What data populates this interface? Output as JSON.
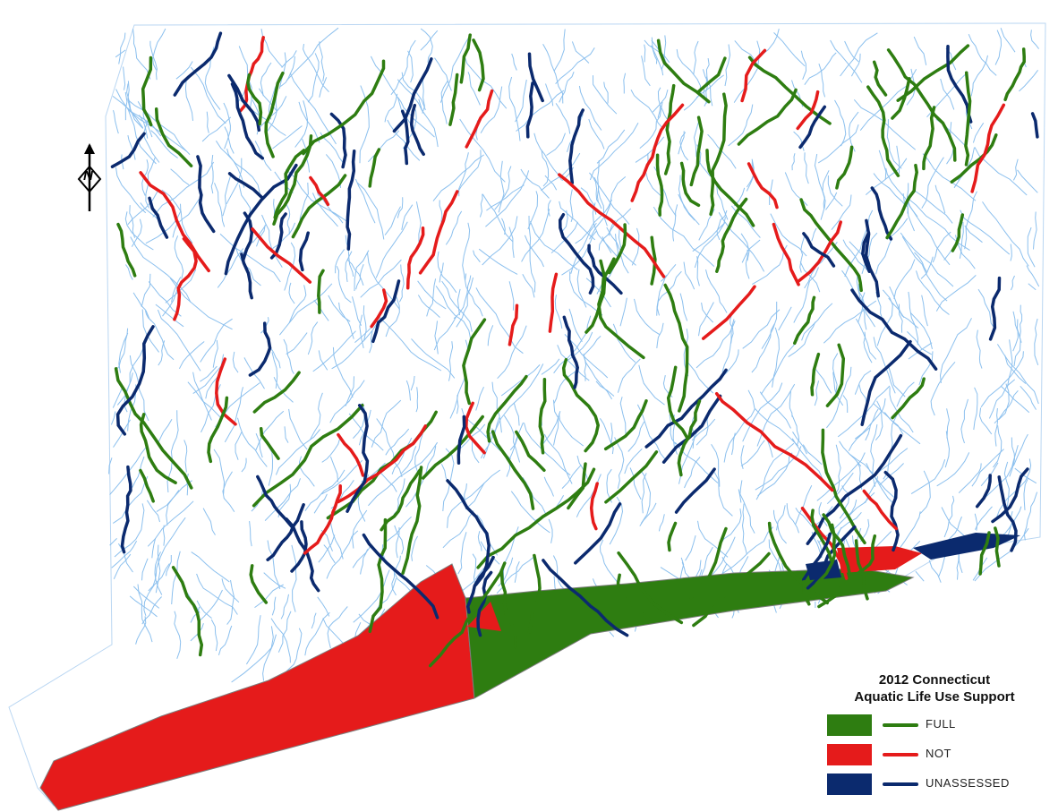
{
  "legend": {
    "title_line1": "2012 Connecticut",
    "title_line2": "Aquatic Life Use Support",
    "items": [
      {
        "label": "FULL",
        "color": "#2e7d11"
      },
      {
        "label": "NOT",
        "color": "#e51b1b"
      },
      {
        "label": "UNASSESSED",
        "color": "#0b2a6e"
      }
    ]
  },
  "north_arrow": {
    "letter": "N"
  },
  "colors": {
    "background": "#ffffff",
    "minor_streams": "#8cc0ee",
    "coast_outline": "#7d7d7d",
    "full": "#2e7d11",
    "not": "#e51b1b",
    "unassessed": "#0b2a6e"
  }
}
